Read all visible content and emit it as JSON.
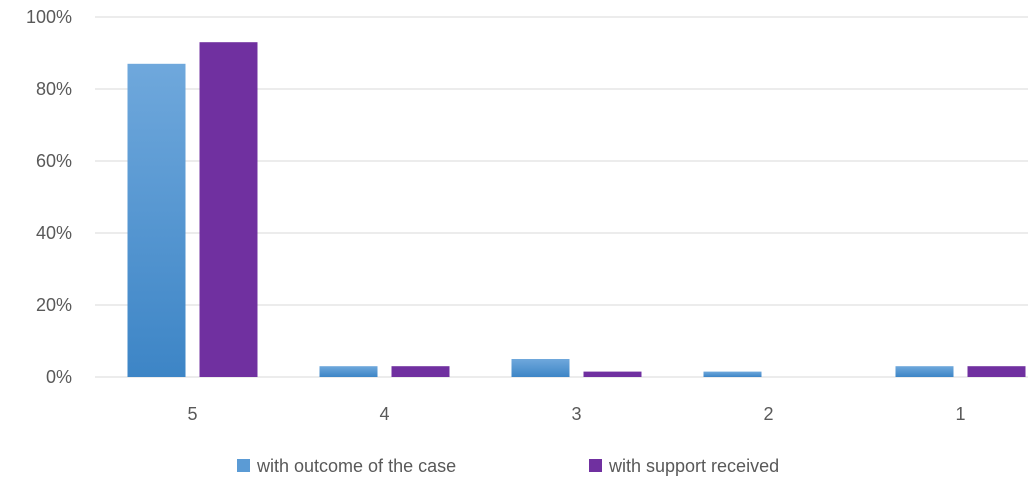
{
  "chart_data": {
    "type": "bar",
    "title": "",
    "xlabel": "",
    "ylabel": "",
    "categories": [
      "5",
      "4",
      "3",
      "2",
      "1"
    ],
    "series": [
      {
        "name": "with outcome of the case",
        "color": "#5b9bd5",
        "values": [
          0.87,
          0.03,
          0.05,
          0.015,
          0.03
        ]
      },
      {
        "name": "with support received",
        "color": "#7030a0",
        "values": [
          0.93,
          0.03,
          0.015,
          0.0,
          0.03
        ]
      }
    ],
    "ylim": [
      0,
      1
    ],
    "yticks": [
      {
        "value": 0,
        "label": "0%"
      },
      {
        "value": 0.2,
        "label": "20%"
      },
      {
        "value": 0.4,
        "label": "40%"
      },
      {
        "value": 0.6,
        "label": "60%"
      },
      {
        "value": 0.8,
        "label": "80%"
      },
      {
        "value": 1.0,
        "label": "100%"
      }
    ],
    "grid": true,
    "legend": "bottom"
  }
}
